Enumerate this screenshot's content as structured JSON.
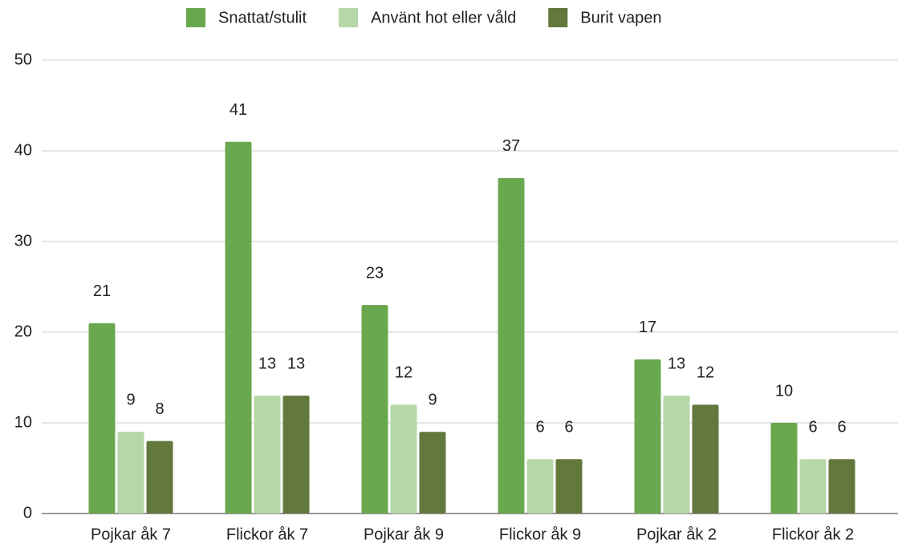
{
  "chart_data": {
    "type": "bar",
    "categories": [
      "Pojkar åk 7",
      "Flickor åk 7",
      "Pojkar åk 9",
      "Flickor åk 9",
      "Pojkar åk 2",
      "Flickor åk 2"
    ],
    "series": [
      {
        "name": "Snattat/stulit",
        "color": "#6aa84f",
        "values": [
          21,
          41,
          23,
          37,
          17,
          10
        ]
      },
      {
        "name": "Använt hot eller våld",
        "color": "#b6d7a8",
        "values": [
          9,
          13,
          12,
          6,
          13,
          6
        ]
      },
      {
        "name": "Burit vapen",
        "color": "#62783d",
        "values": [
          8,
          13,
          9,
          6,
          12,
          6
        ]
      }
    ],
    "ylim": [
      0,
      50
    ],
    "yticks": [
      0,
      10,
      20,
      30,
      40,
      50
    ],
    "grid": true,
    "legend": "top"
  }
}
